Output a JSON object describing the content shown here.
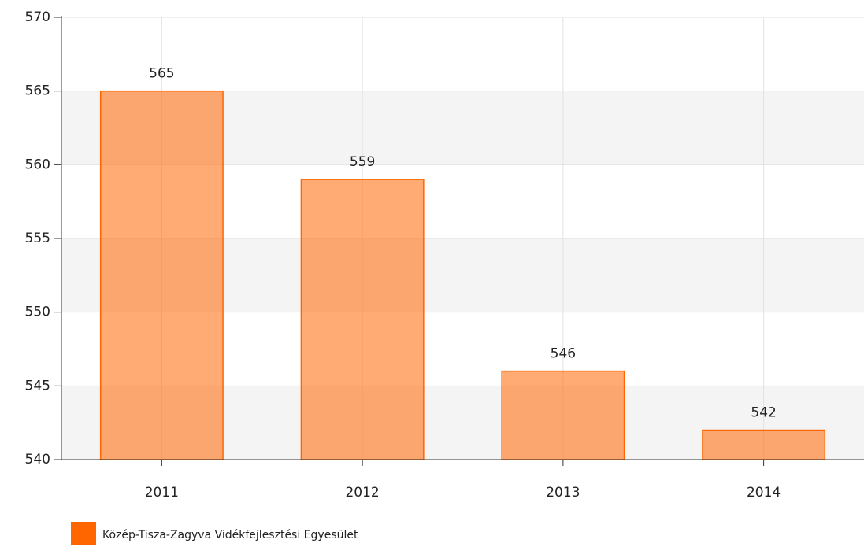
{
  "chart_data": {
    "type": "bar",
    "categories": [
      "2011",
      "2012",
      "2013",
      "2014"
    ],
    "series": [
      {
        "name": "Közép-Tisza-Zagyva Vidékfejlesztési Egyesület",
        "color": "#ff6600",
        "values": [
          565,
          559,
          546,
          542
        ]
      }
    ],
    "ylim": [
      540,
      570
    ],
    "yticks": [
      540,
      545,
      550,
      555,
      560,
      565,
      570
    ],
    "grid": true,
    "data_labels": true,
    "legend": "bottom-left"
  }
}
